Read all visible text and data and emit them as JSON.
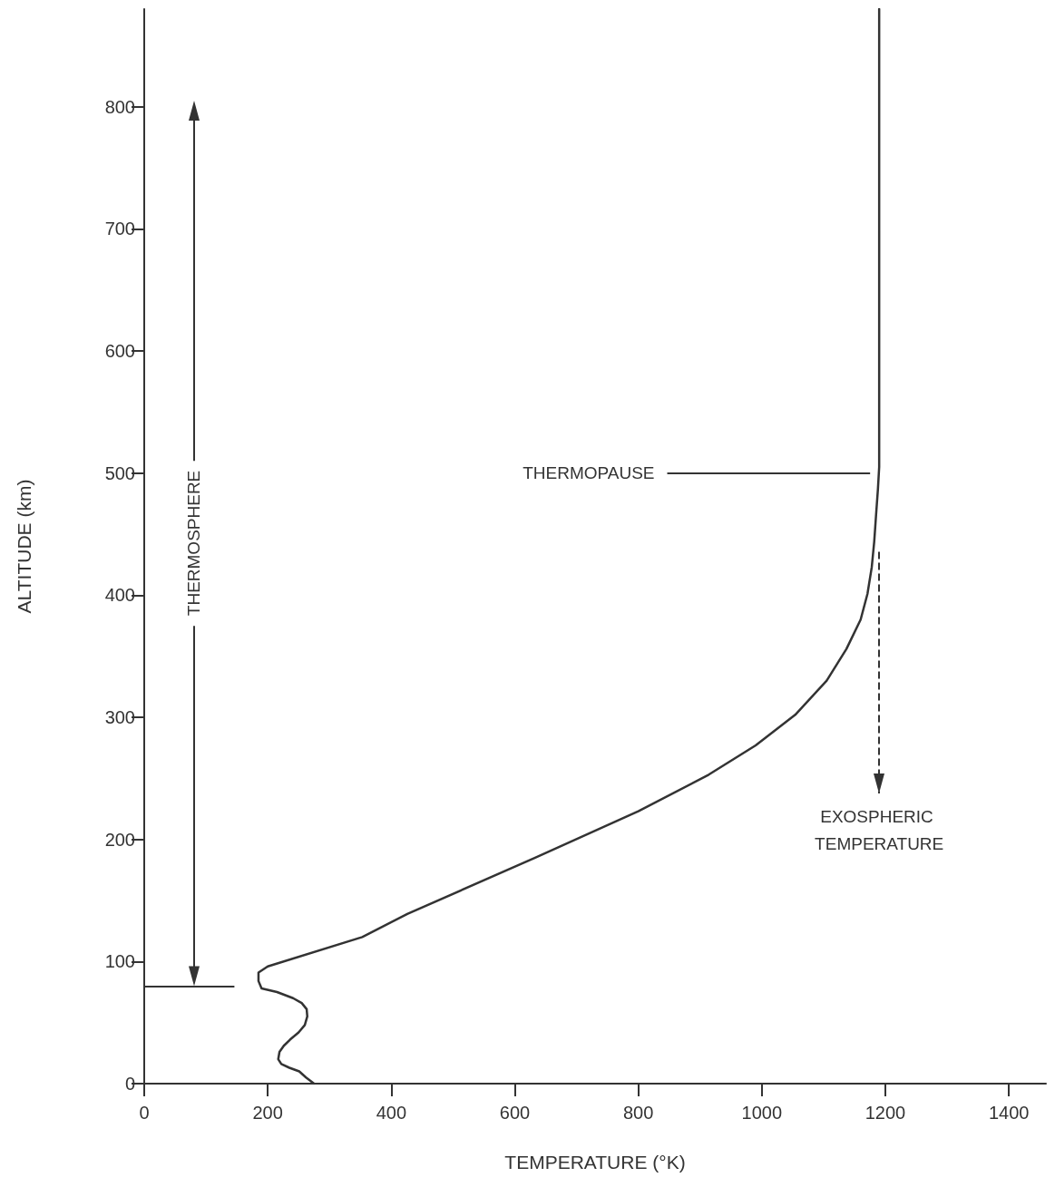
{
  "chart_data": {
    "type": "line",
    "xlabel": "TEMPERATURE (°K)",
    "ylabel": "ALTITUDE (km)",
    "xlim": [
      0,
      1460
    ],
    "ylim": [
      0,
      880
    ],
    "xticks": [
      0,
      200,
      400,
      600,
      800,
      1000,
      1200,
      1400
    ],
    "yticks": [
      0,
      100,
      200,
      300,
      400,
      500,
      600,
      700,
      800
    ],
    "grid": false,
    "marker": "none",
    "line_style": "solid",
    "series": [
      {
        "color": "#333333",
        "x": [
          275,
          262,
          251,
          235,
          222,
          217,
          219,
          226,
          236,
          250,
          260,
          264,
          263,
          255,
          241,
          215,
          190,
          185,
          185,
          200,
          353,
          426,
          633,
          800,
          914,
          990,
          1054,
          1105,
          1137,
          1160,
          1171,
          1178,
          1182,
          1185,
          1188,
          1190,
          1190
        ],
        "values": [
          0,
          5,
          10,
          13,
          16,
          20,
          26,
          31,
          36,
          42,
          48,
          55,
          61,
          66,
          70,
          75,
          78,
          84,
          91,
          96,
          120,
          139,
          185,
          223,
          253,
          277,
          302,
          330,
          356,
          380,
          401,
          423,
          444,
          466,
          487,
          505,
          880
        ]
      }
    ],
    "annotations": [
      "THERMOSPHERE"
    ],
    "ref_lines": [
      {
        "axis": "y",
        "value": 80
      },
      {
        "axis": "y",
        "value": 500,
        "label": "THERMOPAUSE"
      },
      {
        "axis": "x",
        "value": 1190,
        "label": "EXOSPHERIC TEMPERATURE",
        "line_style": "dashed"
      }
    ]
  }
}
